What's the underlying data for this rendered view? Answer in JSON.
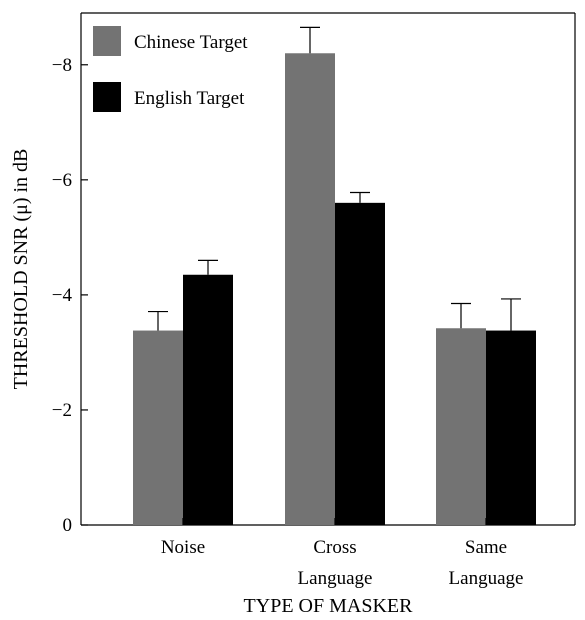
{
  "chart_data": {
    "type": "bar",
    "title": "",
    "xlabel": "TYPE OF MASKER",
    "ylabel": "THRESHOLD SNR (μ) in dB",
    "categories": [
      [
        "Noise"
      ],
      [
        "Cross",
        "Language"
      ],
      [
        "Same",
        "Language"
      ]
    ],
    "y_ticks": [
      0,
      -2,
      -4,
      -6,
      -8
    ],
    "y_tick_labels": [
      "0",
      "−2",
      "−4",
      "−6",
      "−8"
    ],
    "ylim": [
      0,
      -8.9
    ],
    "inverted_y": true,
    "series": [
      {
        "name": "Chinese Target",
        "color": "#737373",
        "values": [
          -3.38,
          -8.2,
          -3.42
        ],
        "errors": [
          0.33,
          0.45,
          0.43
        ]
      },
      {
        "name": "English Target",
        "color": "#000000",
        "values": [
          -4.35,
          -5.6,
          -3.38
        ],
        "errors": [
          0.25,
          0.18,
          0.55
        ]
      }
    ],
    "legend_position": "top-left",
    "grid": false
  }
}
